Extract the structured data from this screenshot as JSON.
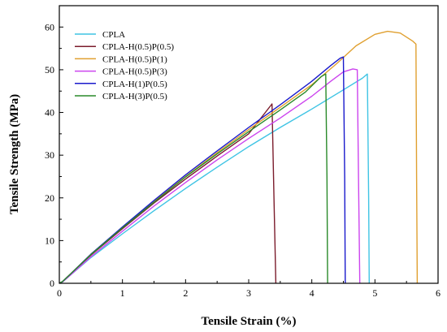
{
  "chart_data": {
    "type": "line",
    "xlabel": "Tensile Strain (%)",
    "ylabel": "Tensile Strength (MPa)",
    "xlim": [
      0,
      6
    ],
    "ylim": [
      0,
      65
    ],
    "xticks": [
      "0",
      "1",
      "2",
      "3",
      "4",
      "5",
      "6"
    ],
    "yticks": [
      "0",
      "10",
      "20",
      "30",
      "40",
      "50",
      "60"
    ],
    "legend_position": "top-left",
    "grid": false,
    "series": [
      {
        "name": "CPLA",
        "color": "#3fc4e4",
        "x": [
          0.0,
          0.05,
          0.15,
          0.5,
          1.0,
          1.5,
          2.0,
          2.5,
          3.0,
          3.5,
          4.0,
          4.5,
          4.8,
          4.88,
          4.9,
          4.91
        ],
        "y": [
          0,
          0.3,
          1.6,
          6.0,
          11.6,
          17.0,
          22.2,
          27.2,
          32.0,
          36.5,
          40.8,
          45.3,
          48.0,
          49.0,
          20.0,
          0
        ]
      },
      {
        "name": "CPLA-H(0.5)P(0.5)",
        "color": "#7b1c2c",
        "x": [
          0.0,
          0.05,
          0.15,
          0.5,
          1.0,
          1.5,
          2.0,
          2.5,
          3.0,
          3.37,
          3.4,
          3.43
        ],
        "y": [
          0,
          0.4,
          1.8,
          6.6,
          12.8,
          18.8,
          24.4,
          29.8,
          35.0,
          42.0,
          20.0,
          0
        ]
      },
      {
        "name": "CPLA-H(0.5)P(1)",
        "color": "#e0a030",
        "x": [
          0.0,
          0.05,
          0.15,
          0.5,
          1.0,
          1.5,
          2.0,
          2.5,
          3.0,
          3.5,
          4.0,
          4.4,
          4.7,
          5.0,
          5.2,
          5.4,
          5.6,
          5.65,
          5.66,
          5.67
        ],
        "y": [
          0,
          0.4,
          1.8,
          6.8,
          13.1,
          19.2,
          25.0,
          30.6,
          36.0,
          41.2,
          46.5,
          51.5,
          55.6,
          58.3,
          59.0,
          58.6,
          56.7,
          56.0,
          25.0,
          0
        ]
      },
      {
        "name": "CPLA-H(0.5)P(3)",
        "color": "#cc44ee",
        "x": [
          0.0,
          0.05,
          0.15,
          0.5,
          1.0,
          1.5,
          2.0,
          2.5,
          3.0,
          3.5,
          4.0,
          4.3,
          4.5,
          4.65,
          4.72,
          4.74,
          4.76
        ],
        "y": [
          0,
          0.3,
          1.6,
          6.2,
          12.2,
          18.1,
          23.6,
          28.9,
          33.9,
          38.7,
          43.8,
          47.3,
          49.5,
          50.2,
          50.0,
          25.0,
          0
        ]
      },
      {
        "name": "CPLA-H(1)P(0.5)",
        "color": "#1a1acc",
        "x": [
          0.0,
          0.05,
          0.15,
          0.5,
          1.0,
          1.5,
          2.0,
          2.5,
          3.0,
          3.5,
          4.0,
          4.3,
          4.45,
          4.5,
          4.52,
          4.53
        ],
        "y": [
          0,
          0.4,
          1.8,
          6.8,
          13.2,
          19.4,
          25.4,
          31.0,
          36.5,
          41.8,
          47.3,
          51.0,
          52.7,
          53.0,
          25.0,
          0
        ]
      },
      {
        "name": "CPLA-H(3)P(0.5)",
        "color": "#2a8a2a",
        "x": [
          0.0,
          0.05,
          0.15,
          0.5,
          1.0,
          1.5,
          2.0,
          2.5,
          3.0,
          3.5,
          3.9,
          4.15,
          4.22,
          4.24,
          4.25
        ],
        "y": [
          0,
          0.4,
          1.8,
          6.7,
          13.0,
          19.0,
          24.9,
          30.3,
          35.5,
          40.6,
          44.8,
          48.4,
          49.0,
          25.0,
          0
        ]
      }
    ]
  }
}
